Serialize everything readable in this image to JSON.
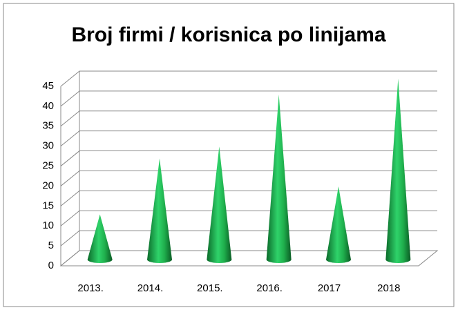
{
  "chart_data": {
    "type": "cone",
    "title": "Broj firmi / korisnica po linijama",
    "categories": [
      "2013.",
      "2014.",
      "2015.",
      "2016.",
      "2017",
      "2018"
    ],
    "values": [
      11,
      25,
      28,
      41,
      18,
      45
    ],
    "color": "#1fa84a",
    "ylim": [
      0,
      45
    ],
    "yticks": [
      0,
      5,
      10,
      15,
      20,
      25,
      30,
      35,
      40,
      45
    ],
    "grid": true
  }
}
